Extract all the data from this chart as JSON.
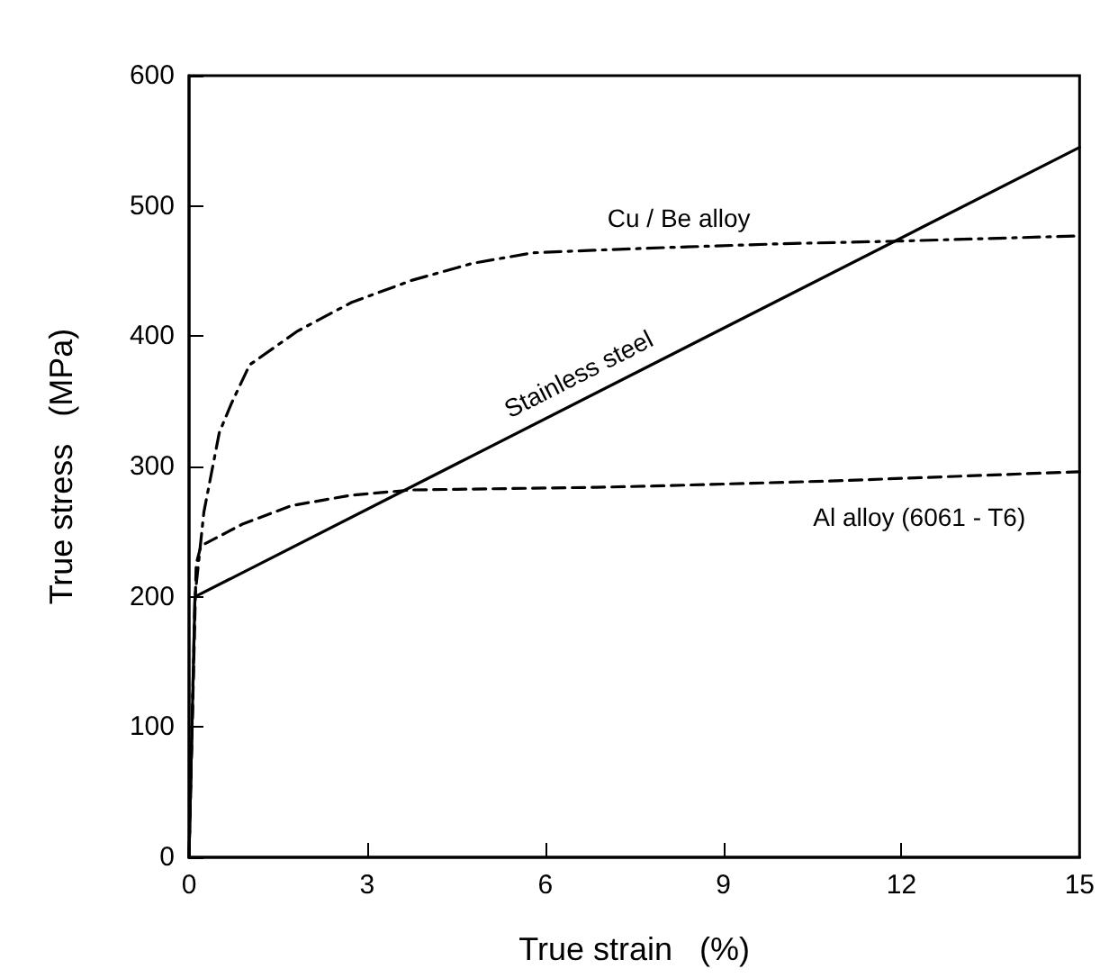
{
  "chart_data": {
    "type": "line",
    "xlabel": "True strain   (%)",
    "ylabel": "True stress   (MPa)",
    "xlim": [
      0,
      15
    ],
    "xticks": [
      0,
      3,
      6,
      9,
      12,
      15
    ],
    "ylim": [
      0,
      600
    ],
    "yticks": [
      0,
      100,
      200,
      300,
      400,
      500,
      600
    ],
    "grid": false,
    "legend": false,
    "marker": "none",
    "series": [
      {
        "name": "Stainless steel",
        "color": "#000000",
        "line_style": "solid",
        "x": [
          0,
          0.1,
          15
        ],
        "values": [
          0,
          200,
          545
        ]
      },
      {
        "name": "Cu / Be alloy",
        "color": "#000000",
        "line_style": "dashdot",
        "x": [
          0,
          0.1,
          0.25,
          0.51,
          0.71,
          1.02,
          1.83,
          2.74,
          3.76,
          4.78,
          5.79,
          6.81,
          8,
          10,
          11.94,
          15
        ],
        "values": [
          0,
          200,
          265,
          326,
          348,
          378,
          404,
          426,
          443,
          456,
          464,
          466,
          468,
          471,
          473,
          477
        ]
      },
      {
        "name": "Al alloy (6061 - T6)",
        "color": "#000000",
        "line_style": "dashed",
        "x": [
          0,
          0.12,
          0.2,
          0.91,
          1.73,
          2.74,
          3.75,
          6.86,
          7.83,
          10.9,
          15
        ],
        "values": [
          0,
          225,
          239,
          256,
          270,
          278,
          282,
          284,
          285,
          289,
          296
        ]
      }
    ]
  }
}
